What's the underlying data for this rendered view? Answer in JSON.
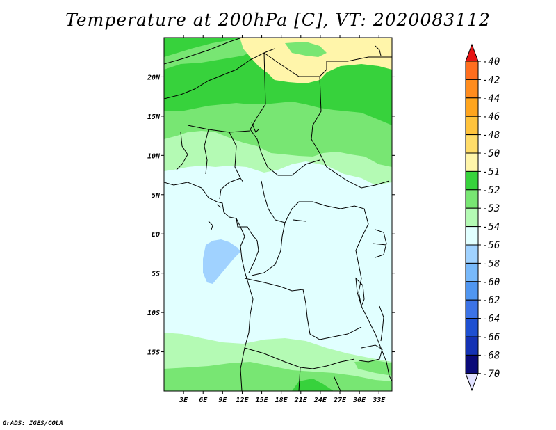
{
  "title": "Temperature at 200hPa [C], VT: 2020083112",
  "credit": "GrADS: IGES/COLA",
  "chart_data": {
    "type": "heatmap",
    "map_extent": {
      "lon": [
        0,
        35
      ],
      "lat": [
        -20,
        25
      ]
    },
    "lon_ticks": [
      {
        "value": 3,
        "label": "3E"
      },
      {
        "value": 6,
        "label": "6E"
      },
      {
        "value": 9,
        "label": "9E"
      },
      {
        "value": 12,
        "label": "12E"
      },
      {
        "value": 15,
        "label": "15E"
      },
      {
        "value": 18,
        "label": "18E"
      },
      {
        "value": 21,
        "label": "21E"
      },
      {
        "value": 24,
        "label": "24E"
      },
      {
        "value": 27,
        "label": "27E"
      },
      {
        "value": 30,
        "label": "30E"
      },
      {
        "value": 33,
        "label": "33E"
      }
    ],
    "lat_ticks": [
      {
        "value": 20,
        "label": "20N"
      },
      {
        "value": 15,
        "label": "15N"
      },
      {
        "value": 10,
        "label": "10N"
      },
      {
        "value": 5,
        "label": "5N"
      },
      {
        "value": 0,
        "label": "EQ"
      },
      {
        "value": -5,
        "label": "5S"
      },
      {
        "value": -10,
        "label": "10S"
      },
      {
        "value": -15,
        "label": "15S"
      }
    ],
    "colorbar": [
      {
        "label": "-40",
        "color": "#ff5a1e"
      },
      {
        "label": "-42",
        "color": "#ff6e1e"
      },
      {
        "label": "-44",
        "color": "#ff8c1e"
      },
      {
        "label": "-46",
        "color": "#ffa51e"
      },
      {
        "label": "-48",
        "color": "#ffc33c"
      },
      {
        "label": "-50",
        "color": "#ffdc69"
      },
      {
        "label": "-51",
        "color": "#fff5aa"
      },
      {
        "label": "-52",
        "color": "#37d23c"
      },
      {
        "label": "-53",
        "color": "#78e673"
      },
      {
        "label": "-54",
        "color": "#b4fab4"
      },
      {
        "label": "-56",
        "color": "#e1ffff"
      },
      {
        "label": "-58",
        "color": "#a0d2ff"
      },
      {
        "label": "-60",
        "color": "#78b9fa"
      },
      {
        "label": "-62",
        "color": "#5096f0"
      },
      {
        "label": "-64",
        "color": "#3c73e6"
      },
      {
        "label": "-66",
        "color": "#1e50d2"
      },
      {
        "label": "-68",
        "color": "#1432b4"
      },
      {
        "label": "-70",
        "color": "#0a0a78"
      }
    ],
    "colorbar_top_arrow_color": "#e61414",
    "colorbar_bottom_arrow_color": "#e1e1ff",
    "field_regions": [
      {
        "id": "green-band",
        "color": "#78e673",
        "lat_range": [
          8,
          25
        ],
        "comment_level": "-53"
      },
      {
        "id": "dark-green-band",
        "color": "#37d23c",
        "lat_range": [
          13,
          24
        ],
        "comment_level": "-52"
      },
      {
        "id": "yellow-patch",
        "color": "#fff5aa",
        "lat_range": [
          19,
          25
        ],
        "comment_level": "-51"
      },
      {
        "id": "light-green-band",
        "color": "#b4fab4",
        "lat_range": [
          7,
          11
        ],
        "comment_level": "-54"
      },
      {
        "id": "pale-cyan-field",
        "color": "#e1ffff",
        "lat_range": [
          -20,
          8
        ],
        "comment_level": "-56"
      },
      {
        "id": "blue-patch",
        "color": "#a0d2ff",
        "lat_range": [
          -6,
          -2
        ],
        "comment_level": "-58"
      },
      {
        "id": "southern-green",
        "color": "#b4fab4",
        "lat_range": [
          -20,
          -13
        ],
        "comment_level": "-54"
      },
      {
        "id": "southern-mid-green",
        "color": "#78e673",
        "lat_range": [
          -20,
          -18
        ],
        "comment_level": "-53"
      }
    ]
  }
}
